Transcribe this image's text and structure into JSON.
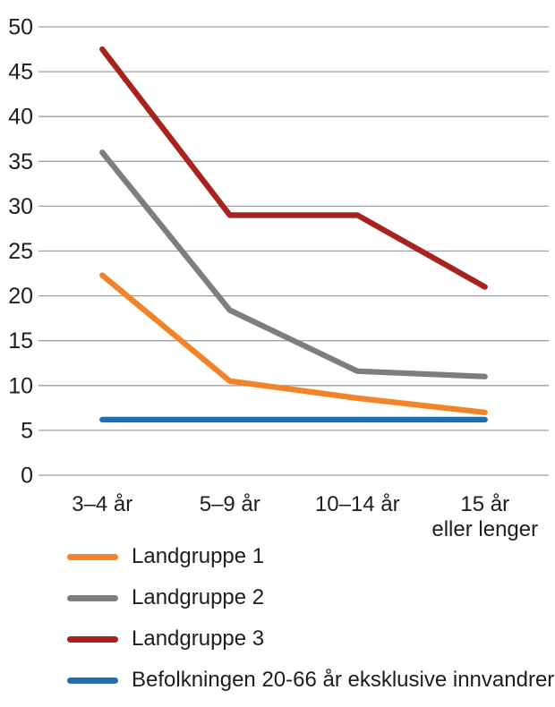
{
  "chart_data": {
    "type": "line",
    "title": "",
    "xlabel": "",
    "ylabel": "",
    "categories": [
      "3–4 år",
      "5–9 år",
      "10–14 år",
      "15 år\neller lenger"
    ],
    "series": [
      {
        "name": "Landgruppe 1",
        "color": "#F28329",
        "values": [
          22.3,
          10.5,
          8.6,
          7.0
        ]
      },
      {
        "name": "Landgruppe 2",
        "color": "#7E7E81",
        "values": [
          36.0,
          18.4,
          11.6,
          11.0
        ]
      },
      {
        "name": "Landgruppe 3",
        "color": "#A8231D",
        "values": [
          47.5,
          29.0,
          29.0,
          21.0
        ]
      },
      {
        "name": "Befolkningen 20-66 år eksklusive innvandrere",
        "color": "#1D6FB4",
        "values": [
          6.2,
          6.2,
          6.2,
          6.2
        ]
      }
    ],
    "ylim": [
      0,
      50
    ],
    "ytick_step": 5,
    "ytick_labels": [
      "0",
      "5",
      "10",
      "15",
      "20",
      "25",
      "30",
      "35",
      "40",
      "45",
      "50"
    ],
    "grid": "horizontal gridlines only, no axis lines",
    "legend_position": "bottom-left"
  },
  "colors": {
    "background": "#FFFFFF",
    "gridline": "#A1A1A1",
    "text": "#1E1E1E"
  }
}
